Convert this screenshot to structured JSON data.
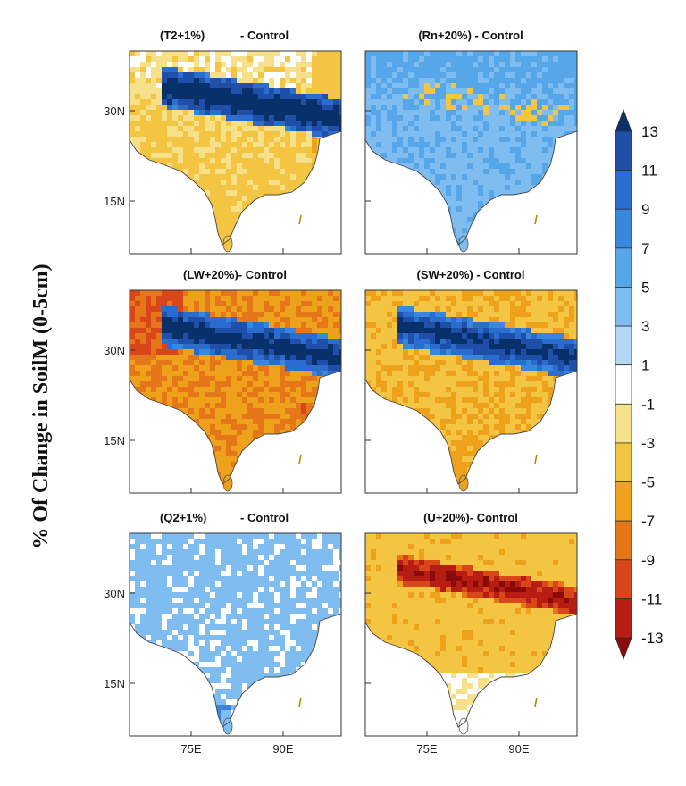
{
  "chart_data": {
    "type": "heatmap",
    "ylabel": "% Of Change in SoilM (0-5cm)",
    "colorbar": {
      "levels": [
        "13",
        "11",
        "9",
        "7",
        "5",
        "3",
        "1",
        "-1",
        "-3",
        "-5",
        "-7",
        "-9",
        "-11",
        "-13"
      ],
      "colors": [
        "#08306b",
        "#1f4fa8",
        "#2b6ccf",
        "#3a86dd",
        "#56a6ea",
        "#7fbdf0",
        "#b5d7f6",
        "#ffffff",
        "#f7e08a",
        "#f4c542",
        "#eea21c",
        "#e6761a",
        "#d8461a",
        "#b81d14",
        "#8b0b0b"
      ]
    },
    "x_ticks": [
      "75E",
      "90E"
    ],
    "y_ticks": [
      "30N",
      "15N"
    ],
    "panels": [
      {
        "title": "(T2+1%)",
        "title_suffix": "- Control",
        "dominant_change_range": [
          -5,
          13
        ],
        "pattern": "drying over plains, strong wetting over Tibetan Plateau"
      },
      {
        "title": "(Rn+20%) - Control",
        "title_suffix": "",
        "dominant_change_range": [
          -3,
          9
        ],
        "pattern": "widespread wetting"
      },
      {
        "title": "(LW+20%)- Control",
        "title_suffix": "",
        "dominant_change_range": [
          -9,
          13
        ],
        "pattern": "strong drying, wetting over Tibetan Plateau"
      },
      {
        "title": "(SW+20%) - Control",
        "title_suffix": "",
        "dominant_change_range": [
          -7,
          13
        ],
        "pattern": "moderate drying, wetting over Tibetan Plateau"
      },
      {
        "title": "(Q2+1%)",
        "title_suffix": "- Control",
        "dominant_change_range": [
          -1,
          7
        ],
        "pattern": "widespread weak wetting"
      },
      {
        "title": "(U+20%)- Control",
        "title_suffix": "",
        "dominant_change_range": [
          -13,
          1
        ],
        "pattern": "weak drying, strong drying along Himalaya"
      }
    ]
  }
}
